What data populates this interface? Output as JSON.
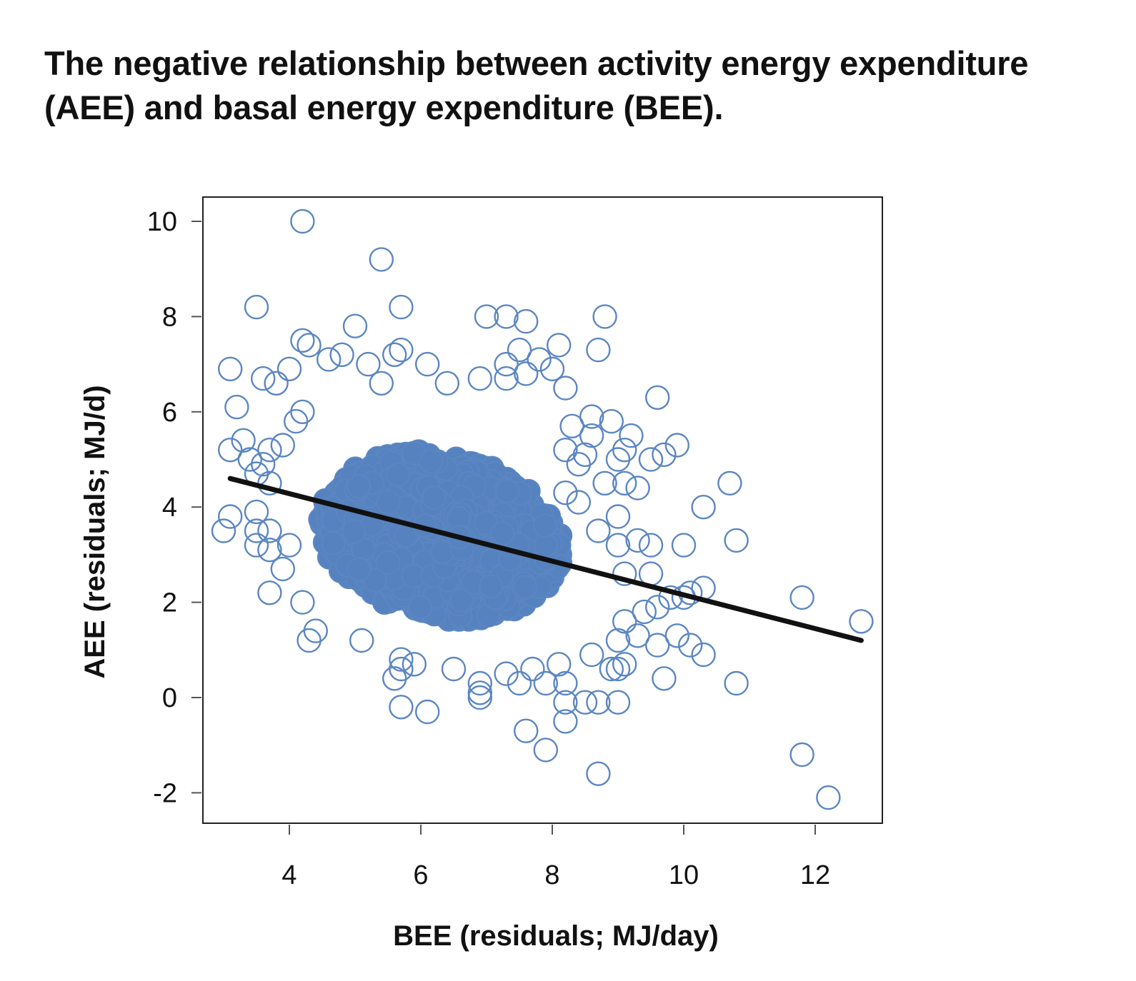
{
  "title_lines": [
    "The negative relationship between activity energy expenditure",
    "(AEE) and basal energy expenditure (BEE)."
  ],
  "colors": {
    "marker": "#5b86c2",
    "cloud_fill": "#5682bf",
    "regression_line": "#111111"
  },
  "chart_data": {
    "type": "scatter",
    "title": "The negative relationship between activity energy expenditure (AEE) and basal energy expenditure (BEE).",
    "xlabel": "BEE (residuals; MJ/day)",
    "ylabel": "AEE (residuals; MJ/d)",
    "xlim": [
      2.7,
      13.0
    ],
    "ylim": [
      -2.6,
      10.5
    ],
    "xticks": [
      4,
      6,
      8,
      10,
      12
    ],
    "yticks": [
      -2,
      0,
      2,
      4,
      6,
      8,
      10
    ],
    "xtick_labels": [
      "4",
      "6",
      "8",
      "10",
      "12"
    ],
    "ytick_labels": [
      "-2",
      "0",
      "2",
      "4",
      "6",
      "8",
      "10"
    ],
    "grid": false,
    "legend": "none",
    "marker": "open circle",
    "dense_cloud_note_estimate": {
      "x_center": 6.3,
      "y_center": 3.4,
      "x_spread": 1.05,
      "y_spread": 0.95,
      "count_estimate": 4500
    },
    "points": [
      [
        4.2,
        10.0
      ],
      [
        5.4,
        9.2
      ],
      [
        3.5,
        8.2
      ],
      [
        5.7,
        8.2
      ],
      [
        5.0,
        7.8
      ],
      [
        7.0,
        8.0
      ],
      [
        7.3,
        8.0
      ],
      [
        7.6,
        7.9
      ],
      [
        8.8,
        8.0
      ],
      [
        8.7,
        7.3
      ],
      [
        8.1,
        7.4
      ],
      [
        4.2,
        7.5
      ],
      [
        4.3,
        7.4
      ],
      [
        3.1,
        6.9
      ],
      [
        4.6,
        7.1
      ],
      [
        4.8,
        7.2
      ],
      [
        5.2,
        7.0
      ],
      [
        5.6,
        7.2
      ],
      [
        5.7,
        7.3
      ],
      [
        6.1,
        7.0
      ],
      [
        7.3,
        7.0
      ],
      [
        7.5,
        7.3
      ],
      [
        7.8,
        7.1
      ],
      [
        8.0,
        6.9
      ],
      [
        3.6,
        6.7
      ],
      [
        3.8,
        6.6
      ],
      [
        4.0,
        6.9
      ],
      [
        5.4,
        6.6
      ],
      [
        6.4,
        6.6
      ],
      [
        6.9,
        6.7
      ],
      [
        7.3,
        6.7
      ],
      [
        7.6,
        6.8
      ],
      [
        8.2,
        6.5
      ],
      [
        3.2,
        6.1
      ],
      [
        4.2,
        6.0
      ],
      [
        4.1,
        5.8
      ],
      [
        8.3,
        5.7
      ],
      [
        8.6,
        5.9
      ],
      [
        8.9,
        5.8
      ],
      [
        8.6,
        5.5
      ],
      [
        9.2,
        5.5
      ],
      [
        9.1,
        5.2
      ],
      [
        9.6,
        6.3
      ],
      [
        9.5,
        5.0
      ],
      [
        9.7,
        5.1
      ],
      [
        9.9,
        5.3
      ],
      [
        8.2,
        5.2
      ],
      [
        8.5,
        5.1
      ],
      [
        8.4,
        4.9
      ],
      [
        9.0,
        5.0
      ],
      [
        3.3,
        5.4
      ],
      [
        3.1,
        5.2
      ],
      [
        3.4,
        5.0
      ],
      [
        3.7,
        5.2
      ],
      [
        3.9,
        5.3
      ],
      [
        3.6,
        4.9
      ],
      [
        3.5,
        4.7
      ],
      [
        3.7,
        4.5
      ],
      [
        8.2,
        4.3
      ],
      [
        8.4,
        4.1
      ],
      [
        8.8,
        4.5
      ],
      [
        9.1,
        4.5
      ],
      [
        9.3,
        4.4
      ],
      [
        9.0,
        3.8
      ],
      [
        10.7,
        4.5
      ],
      [
        10.3,
        4.0
      ],
      [
        3.0,
        3.5
      ],
      [
        3.1,
        3.8
      ],
      [
        3.5,
        3.9
      ],
      [
        3.5,
        3.5
      ],
      [
        3.7,
        3.5
      ],
      [
        3.5,
        3.2
      ],
      [
        3.7,
        3.1
      ],
      [
        4.0,
        3.2
      ],
      [
        3.9,
        2.7
      ],
      [
        3.7,
        2.2
      ],
      [
        4.2,
        2.0
      ],
      [
        4.4,
        1.4
      ],
      [
        4.3,
        1.2
      ],
      [
        5.1,
        1.2
      ],
      [
        5.7,
        0.8
      ],
      [
        5.7,
        0.6
      ],
      [
        5.6,
        0.4
      ],
      [
        5.9,
        0.7
      ],
      [
        5.7,
        -0.2
      ],
      [
        6.1,
        -0.3
      ],
      [
        6.5,
        0.6
      ],
      [
        6.9,
        0.3
      ],
      [
        6.9,
        0.1
      ],
      [
        6.9,
        0.0
      ],
      [
        7.3,
        0.5
      ],
      [
        7.5,
        0.3
      ],
      [
        7.7,
        0.6
      ],
      [
        7.9,
        0.3
      ],
      [
        8.1,
        0.7
      ],
      [
        8.2,
        0.3
      ],
      [
        8.2,
        -0.1
      ],
      [
        8.5,
        -0.1
      ],
      [
        8.7,
        -0.1
      ],
      [
        9.0,
        -0.1
      ],
      [
        7.6,
        -0.7
      ],
      [
        7.9,
        -1.1
      ],
      [
        8.2,
        -0.5
      ],
      [
        8.7,
        -1.6
      ],
      [
        9.3,
        3.3
      ],
      [
        9.5,
        3.2
      ],
      [
        9.0,
        3.2
      ],
      [
        8.7,
        3.5
      ],
      [
        9.1,
        2.6
      ],
      [
        9.5,
        2.6
      ],
      [
        9.8,
        2.1
      ],
      [
        10.0,
        2.1
      ],
      [
        10.3,
        2.3
      ],
      [
        10.1,
        2.2
      ],
      [
        10.0,
        3.2
      ],
      [
        10.8,
        3.3
      ],
      [
        9.6,
        1.9
      ],
      [
        9.4,
        1.8
      ],
      [
        9.1,
        1.6
      ],
      [
        9.0,
        1.2
      ],
      [
        9.3,
        1.3
      ],
      [
        9.6,
        1.1
      ],
      [
        9.9,
        1.3
      ],
      [
        10.1,
        1.1
      ],
      [
        10.3,
        0.9
      ],
      [
        9.1,
        0.7
      ],
      [
        9.0,
        0.6
      ],
      [
        9.7,
        0.4
      ],
      [
        10.8,
        0.3
      ],
      [
        8.6,
        0.9
      ],
      [
        8.9,
        0.6
      ],
      [
        11.8,
        2.1
      ],
      [
        12.7,
        1.6
      ],
      [
        11.8,
        -1.2
      ],
      [
        12.2,
        -2.1
      ]
    ],
    "regression_line": {
      "x": [
        3.1,
        12.7
      ],
      "y": [
        4.6,
        1.2
      ]
    }
  }
}
